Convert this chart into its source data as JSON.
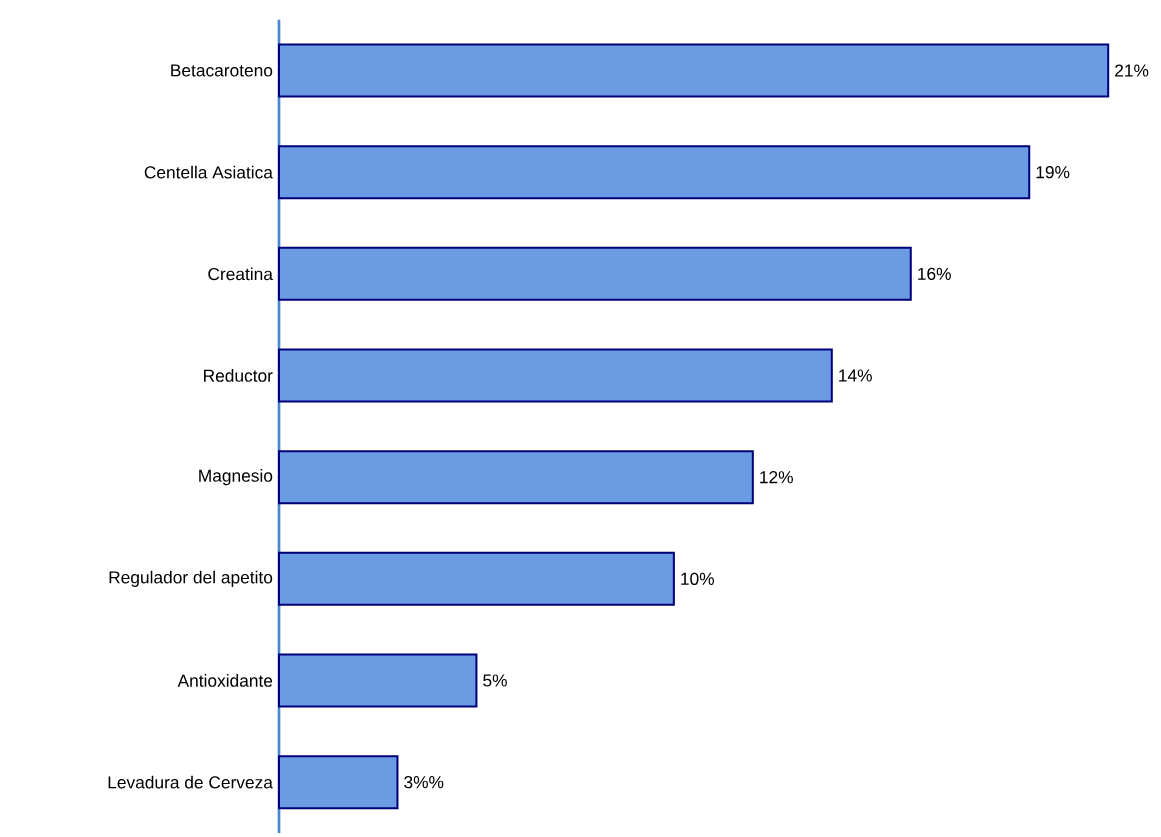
{
  "chart_data": {
    "type": "bar",
    "orientation": "horizontal",
    "categories": [
      "Betacaroteno",
      "Centella Asiatica",
      "Creatina",
      "Reductor",
      "Magnesio",
      "Regulador del apetito",
      "Antioxidante",
      "Levadura de Cerveza"
    ],
    "values": [
      21,
      19,
      16,
      14,
      12,
      10,
      5,
      3
    ],
    "value_labels": [
      "21%",
      "19%",
      "16%",
      "14%",
      "12%",
      "10%",
      "5%",
      "3%%"
    ],
    "color": "#6a9be3"
  }
}
